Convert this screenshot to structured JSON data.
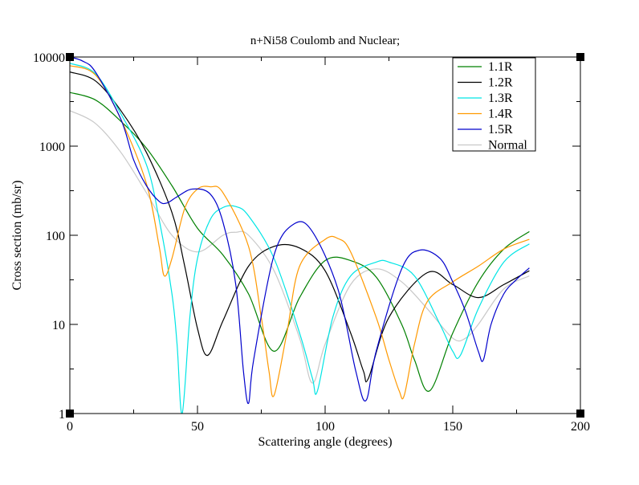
{
  "chart_data": {
    "type": "line",
    "title": "n+Ni58 Coulomb and Nuclear;",
    "xlabel": "Scattering angle (degrees)",
    "ylabel": "Cross section (mb/sr)",
    "xlim": [
      0,
      200
    ],
    "ylim": [
      1,
      10000
    ],
    "yscale": "log",
    "x_ticks": [
      0,
      50,
      100,
      150,
      200
    ],
    "x_tick_labels": [
      "0",
      "50",
      "100",
      "150",
      "200"
    ],
    "y_ticks": [
      1,
      10,
      100,
      1000,
      10000
    ],
    "y_tick_labels": [
      "1",
      "10",
      "100",
      "1000",
      "10000"
    ],
    "grid": false,
    "legend_position": "top-right",
    "series": [
      {
        "name": "1.1R",
        "color": "#008000",
        "x": [
          0,
          10,
          20,
          30,
          40,
          50,
          60,
          70,
          80,
          90,
          100,
          110,
          120,
          130,
          135,
          141,
          150,
          160,
          170,
          180
        ],
        "y": [
          4000,
          3300,
          1900,
          950,
          360,
          120,
          60,
          22,
          5,
          20,
          52,
          52,
          34,
          10,
          4,
          1.8,
          8,
          30,
          70,
          110
        ]
      },
      {
        "name": "1.2R",
        "color": "#000000",
        "x": [
          0,
          10,
          20,
          30,
          40,
          45,
          50,
          54,
          60,
          70,
          80,
          90,
          100,
          110,
          115,
          117,
          125,
          140,
          150,
          160,
          170,
          180
        ],
        "y": [
          6800,
          5400,
          2500,
          850,
          180,
          45,
          9,
          4.5,
          11,
          45,
          75,
          72,
          40,
          8,
          3,
          2.5,
          12,
          38,
          28,
          20,
          28,
          40
        ]
      },
      {
        "name": "1.3R",
        "color": "#00e5e5",
        "x": [
          0,
          10,
          20,
          30,
          35,
          40,
          42,
          44,
          47,
          50,
          55,
          60,
          65,
          70,
          80,
          90,
          95,
          97,
          103,
          110,
          120,
          125,
          135,
          145,
          150,
          153,
          160,
          170,
          180
        ],
        "y": [
          8500,
          6500,
          2300,
          620,
          150,
          22,
          6,
          1,
          12,
          55,
          150,
          205,
          210,
          165,
          55,
          8,
          2.5,
          1.8,
          12,
          35,
          50,
          50,
          35,
          10,
          5,
          4.5,
          15,
          50,
          80
        ]
      },
      {
        "name": "1.4R",
        "color": "#ff9900",
        "x": [
          0,
          10,
          20,
          30,
          35,
          37,
          40,
          45,
          50,
          55,
          60,
          70,
          75,
          78,
          80,
          85,
          90,
          100,
          105,
          110,
          120,
          125,
          129,
          131,
          135,
          140,
          150,
          160,
          170,
          180
        ],
        "y": [
          8000,
          6300,
          2000,
          380,
          75,
          35,
          55,
          200,
          330,
          350,
          300,
          75,
          12,
          3,
          1.6,
          8,
          45,
          90,
          92,
          65,
          12,
          4,
          1.8,
          1.6,
          6,
          18,
          30,
          45,
          70,
          90
        ]
      },
      {
        "name": "1.5R",
        "color": "#0000cc",
        "x": [
          0,
          5,
          10,
          20,
          25,
          30,
          35,
          38,
          42,
          48,
          55,
          60,
          65,
          68,
          70,
          72,
          80,
          88,
          95,
          105,
          112,
          116,
          120,
          130,
          137,
          145,
          150,
          155,
          160,
          162,
          165,
          170,
          175,
          180
        ],
        "y": [
          10000,
          9000,
          6800,
          2000,
          700,
          360,
          240,
          230,
          270,
          330,
          290,
          140,
          28,
          3,
          1.3,
          4,
          60,
          135,
          110,
          25,
          3,
          1.4,
          5,
          42,
          68,
          55,
          30,
          14,
          5,
          4,
          10,
          22,
          32,
          43
        ]
      },
      {
        "name": "Normal",
        "color": "#c8c8c8",
        "x": [
          0,
          10,
          20,
          30,
          40,
          50,
          60,
          65,
          70,
          80,
          90,
          95,
          100,
          110,
          120,
          130,
          140,
          150,
          155,
          160,
          170,
          180
        ],
        "y": [
          2500,
          1800,
          850,
          300,
          100,
          65,
          100,
          108,
          100,
          40,
          7,
          2.2,
          6,
          28,
          42,
          30,
          15,
          7,
          7,
          10,
          25,
          35
        ]
      }
    ]
  }
}
